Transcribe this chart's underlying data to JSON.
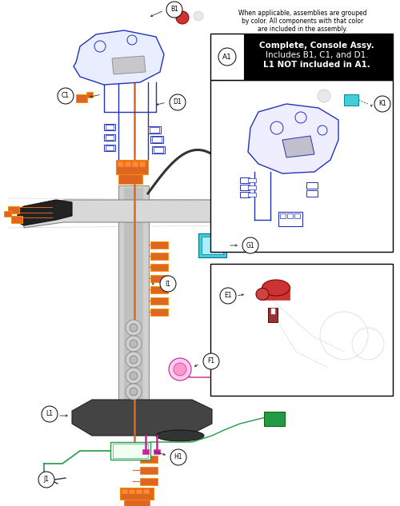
{
  "bg_color": "#ffffff",
  "note_text_line1": "When applicable, assemblies are grouped",
  "note_text_line2": "by color. All components with that color",
  "note_text_line3": "are included in the assembly.",
  "legend_text_line1": "Complete, Console Assy.",
  "legend_text_line2": "Includes B1, C1, and D1.",
  "legend_text_line3": "L1 NOT included in A1.",
  "colors": {
    "blue": "#2233bb",
    "orange": "#dd6622",
    "magenta": "#cc2299",
    "cyan": "#44ccdd",
    "green": "#229944",
    "red": "#cc3333",
    "dark": "#333333",
    "gray": "#999999",
    "lgray": "#cccccc",
    "vlgray": "#e8e8e8",
    "black": "#111111"
  }
}
